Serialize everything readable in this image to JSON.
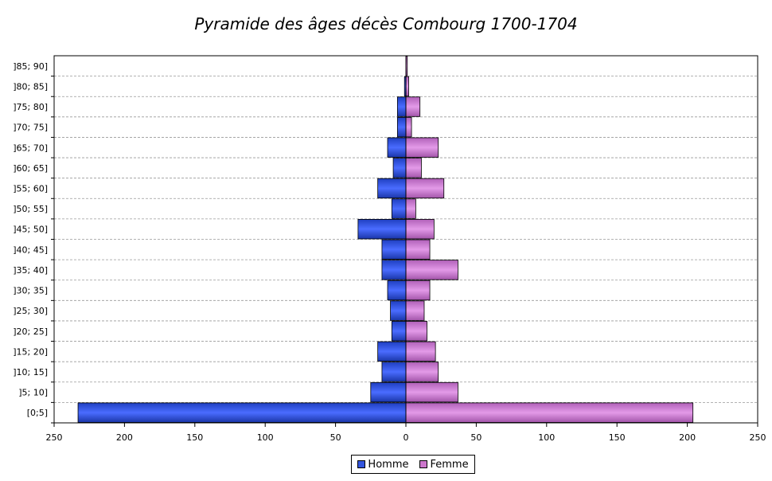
{
  "chart_data": {
    "type": "bar",
    "orientation": "horizontal",
    "title": "Pyramide des âges décès Combourg 1700-1704",
    "categories": [
      "[0;5]",
      "]5; 10]",
      "]10; 15]",
      "]15; 20]",
      "]20; 25]",
      "]25; 30]",
      "]30; 35]",
      "]35; 40]",
      "]40; 45]",
      "]45; 50]",
      "]50; 55]",
      "]55; 60]",
      "]60; 65]",
      "]65; 70]",
      "]70; 75]",
      "]75; 80]",
      "]80; 85]",
      "]85; 90]"
    ],
    "series": [
      {
        "name": "Homme",
        "color": "#3355dd",
        "values": [
          233,
          25,
          17,
          20,
          10,
          11,
          13,
          17,
          17,
          34,
          10,
          20,
          9,
          13,
          6,
          6,
          1,
          0
        ]
      },
      {
        "name": "Femme",
        "color": "#cc77cc",
        "values": [
          204,
          37,
          23,
          21,
          15,
          13,
          17,
          37,
          17,
          20,
          7,
          27,
          11,
          23,
          4,
          10,
          2,
          1
        ]
      }
    ],
    "xlim": [
      -250,
      250
    ],
    "xticks": [
      -250,
      -200,
      -150,
      -100,
      -50,
      0,
      50,
      100,
      150,
      200,
      250
    ],
    "xtick_labels": [
      "250",
      "200",
      "150",
      "100",
      "50",
      "0",
      "50",
      "100",
      "150",
      "200",
      "250"
    ],
    "xlabel": "",
    "ylabel": "",
    "grid": "horizontal dashed",
    "legend_position": "bottom-center"
  }
}
